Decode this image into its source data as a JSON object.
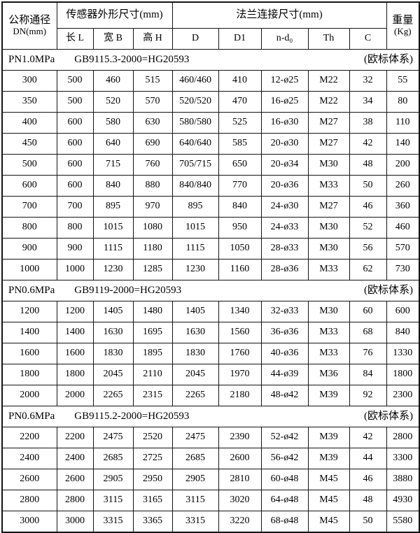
{
  "table": {
    "header": {
      "dn_line1": "公称通径",
      "dn_line2": "DN(mm)",
      "group_sensor": "传感器外形尺寸(mm)",
      "group_flange": "法兰连接尺寸(mm)",
      "weight_line1": "重量",
      "weight_line2": "(Kg)",
      "sub_columns": [
        "长 L",
        "宽 B",
        "高 H",
        "D",
        "D1",
        "n-d₀",
        "Th",
        "C"
      ]
    },
    "sections": [
      {
        "pressure": "PN1.0MPa",
        "standard": "GB9115.3-2000=HG20593",
        "system": "(欧标体系)",
        "rows": [
          [
            "300",
            "500",
            "460",
            "515",
            "460/460",
            "410",
            "12-ø25",
            "M22",
            "32",
            "55"
          ],
          [
            "350",
            "500",
            "520",
            "570",
            "520/520",
            "470",
            "16-ø25",
            "M22",
            "34",
            "80"
          ],
          [
            "400",
            "600",
            "580",
            "630",
            "580/580",
            "525",
            "16-ø30",
            "M27",
            "38",
            "110"
          ],
          [
            "450",
            "600",
            "640",
            "690",
            "640/640",
            "585",
            "20-ø30",
            "M27",
            "42",
            "140"
          ],
          [
            "500",
            "600",
            "715",
            "760",
            "705/715",
            "650",
            "20-ø34",
            "M30",
            "48",
            "200"
          ],
          [
            "600",
            "600",
            "840",
            "880",
            "840/840",
            "770",
            "20-ø36",
            "M33",
            "50",
            "260"
          ],
          [
            "700",
            "700",
            "895",
            "970",
            "895",
            "840",
            "24-ø30",
            "M27",
            "46",
            "360"
          ],
          [
            "800",
            "800",
            "1015",
            "1080",
            "1015",
            "950",
            "24-ø33",
            "M30",
            "52",
            "460"
          ],
          [
            "900",
            "900",
            "1115",
            "1180",
            "1115",
            "1050",
            "28-ø33",
            "M30",
            "56",
            "570"
          ],
          [
            "1000",
            "1000",
            "1230",
            "1285",
            "1230",
            "1160",
            "28-ø36",
            "M33",
            "62",
            "730"
          ]
        ]
      },
      {
        "pressure": "PN0.6MPa",
        "standard": "GB9119-2000=HG20593",
        "system": "(欧标体系)",
        "rows": [
          [
            "1200",
            "1200",
            "1405",
            "1480",
            "1405",
            "1340",
            "32-ø33",
            "M30",
            "60",
            "600"
          ],
          [
            "1400",
            "1400",
            "1630",
            "1695",
            "1630",
            "1560",
            "36-ø36",
            "M33",
            "68",
            "840"
          ],
          [
            "1600",
            "1600",
            "1830",
            "1895",
            "1830",
            "1760",
            "40-ø36",
            "M33",
            "76",
            "1330"
          ],
          [
            "1800",
            "1800",
            "2045",
            "2110",
            "2045",
            "1970",
            "44-ø39",
            "M36",
            "84",
            "1800"
          ],
          [
            "2000",
            "2000",
            "2265",
            "2315",
            "2265",
            "2180",
            "48-ø42",
            "M39",
            "92",
            "2300"
          ]
        ]
      },
      {
        "pressure": "PN0.6MPa",
        "standard": "GB9115.2-2000=HG20593",
        "system": "(欧标体系)",
        "rows": [
          [
            "2200",
            "2200",
            "2475",
            "2520",
            "2475",
            "2390",
            "52-ø42",
            "M39",
            "42",
            "2800"
          ],
          [
            "2400",
            "2400",
            "2685",
            "2725",
            "2685",
            "2600",
            "56-ø42",
            "M39",
            "44",
            "3300"
          ],
          [
            "2600",
            "2600",
            "2905",
            "2950",
            "2905",
            "2810",
            "60-ø48",
            "M45",
            "46",
            "3880"
          ],
          [
            "2800",
            "2800",
            "3115",
            "3165",
            "3115",
            "3020",
            "64-ø48",
            "M45",
            "48",
            "4930"
          ],
          [
            "3000",
            "3000",
            "3315",
            "3365",
            "3315",
            "3220",
            "68-ø48",
            "M45",
            "50",
            "5580"
          ]
        ]
      }
    ]
  }
}
